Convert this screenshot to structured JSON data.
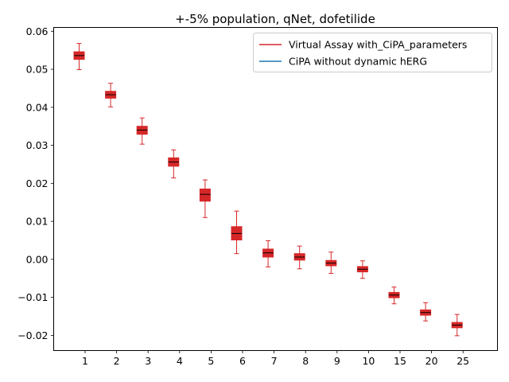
{
  "chart_data": {
    "type": "box",
    "title": "+-5% population, qNet, dofetilide",
    "xlabel": "",
    "ylabel": "",
    "categories": [
      "1",
      "2",
      "3",
      "4",
      "5",
      "6",
      "7",
      "8",
      "9",
      "10",
      "15",
      "20",
      "25"
    ],
    "ylim": [
      -0.024,
      0.061
    ],
    "yticks": [
      -0.02,
      -0.01,
      0.0,
      0.01,
      0.02,
      0.03,
      0.04,
      0.05,
      0.06
    ],
    "ytick_labels": [
      "−0.02",
      "−0.01",
      "0.00",
      "0.01",
      "0.02",
      "0.03",
      "0.04",
      "0.05",
      "0.06"
    ],
    "legend_position": "top-right",
    "grid": false,
    "series": [
      {
        "name": "Virtual Assay with_CiPA_parameters",
        "color": "#d62728",
        "boxes": [
          {
            "whislo": 0.0499,
            "q1": 0.0526,
            "med": 0.0536,
            "q3": 0.0546,
            "whishi": 0.0568
          },
          {
            "whislo": 0.0401,
            "q1": 0.0424,
            "med": 0.0433,
            "q3": 0.0442,
            "whishi": 0.0463
          },
          {
            "whislo": 0.0303,
            "q1": 0.0329,
            "med": 0.034,
            "q3": 0.035,
            "whishi": 0.0372
          },
          {
            "whislo": 0.0214,
            "q1": 0.0245,
            "med": 0.0256,
            "q3": 0.0267,
            "whishi": 0.0288
          },
          {
            "whislo": 0.011,
            "q1": 0.0153,
            "med": 0.0171,
            "q3": 0.0185,
            "whishi": 0.0209
          },
          {
            "whislo": 0.0015,
            "q1": 0.0051,
            "med": 0.0068,
            "q3": 0.0086,
            "whishi": 0.0127
          },
          {
            "whislo": -0.002,
            "q1": 0.0006,
            "med": 0.0017,
            "q3": 0.0027,
            "whishi": 0.0049
          },
          {
            "whislo": -0.0025,
            "q1": -0.0002,
            "med": 0.0006,
            "q3": 0.0015,
            "whishi": 0.0035
          },
          {
            "whislo": -0.0037,
            "q1": -0.0017,
            "med": -0.001,
            "q3": -0.0003,
            "whishi": 0.0019
          },
          {
            "whislo": -0.005,
            "q1": -0.0033,
            "med": -0.0026,
            "q3": -0.0019,
            "whishi": -0.0004
          },
          {
            "whislo": -0.0117,
            "q1": -0.0101,
            "med": -0.0094,
            "q3": -0.0087,
            "whishi": -0.0073
          },
          {
            "whislo": -0.0162,
            "q1": -0.0147,
            "med": -0.014,
            "q3": -0.0133,
            "whishi": -0.0114
          },
          {
            "whislo": -0.0201,
            "q1": -0.018,
            "med": -0.0173,
            "q3": -0.0166,
            "whishi": -0.0145
          }
        ]
      },
      {
        "name": "CiPA without dynamic hERG",
        "color": "#1f77b4",
        "boxes": []
      }
    ]
  }
}
